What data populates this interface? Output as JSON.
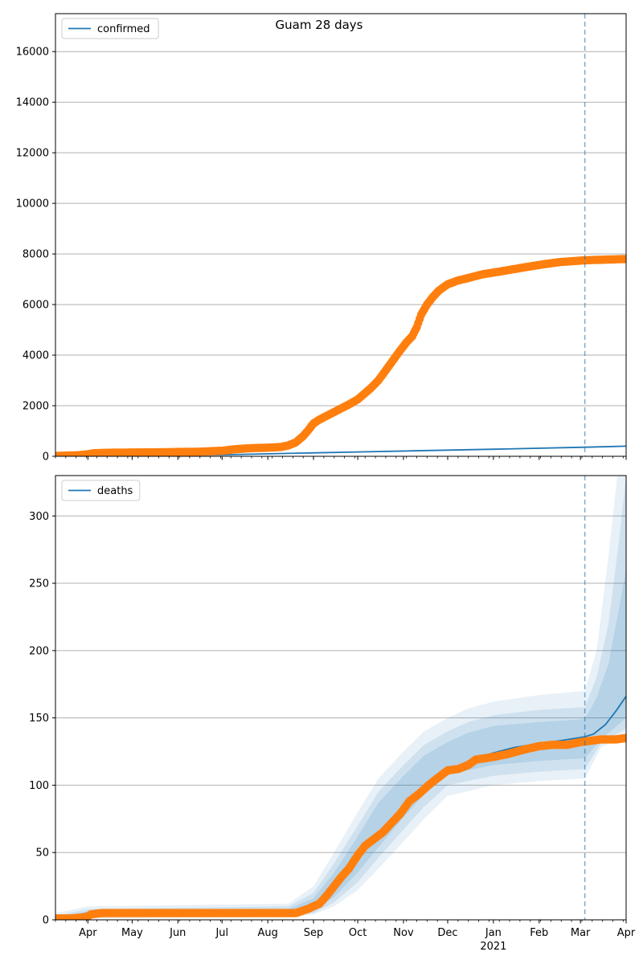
{
  "figure": {
    "title": "Guam 28 days"
  },
  "colors": {
    "model": "#1f77b4",
    "observed": "#ff7f0e",
    "grid": "#b0b0b0",
    "band": "#1f77b4",
    "forecast_line": "#1f77b4"
  },
  "x_axis": {
    "month_labels": [
      "Apr",
      "May",
      "Jun",
      "Jul",
      "Aug",
      "Sep",
      "Oct",
      "Nov",
      "Dec",
      "Jan",
      "Feb",
      "Mar",
      "Apr"
    ],
    "year_label": "2021",
    "range": [
      "2020-03-10",
      "2021-04-01"
    ],
    "forecast_start": "2021-03-04"
  },
  "chart_data": [
    {
      "type": "line",
      "name": "confirmed",
      "ylim": [
        0,
        17500
      ],
      "yticks": [
        0,
        2000,
        4000,
        6000,
        8000,
        10000,
        12000,
        14000,
        16000
      ],
      "grid": "horizontal",
      "legend": {
        "position": "top-left",
        "entries": [
          "confirmed"
        ]
      },
      "series": [
        {
          "name": "confirmed",
          "style": "line",
          "points": [
            [
              "2020-03-10",
              0
            ],
            [
              "2020-07-01",
              60
            ],
            [
              "2020-10-01",
              170
            ],
            [
              "2021-01-01",
              280
            ],
            [
              "2021-03-04",
              360
            ],
            [
              "2021-04-01",
              400
            ]
          ]
        },
        {
          "style": "markers",
          "points": [
            [
              "2020-03-10",
              15
            ],
            [
              "2020-03-25",
              40
            ],
            [
              "2020-04-01",
              80
            ],
            [
              "2020-04-05",
              120
            ],
            [
              "2020-04-15",
              140
            ],
            [
              "2020-05-01",
              150
            ],
            [
              "2020-05-15",
              155
            ],
            [
              "2020-06-01",
              170
            ],
            [
              "2020-06-15",
              180
            ],
            [
              "2020-07-01",
              220
            ],
            [
              "2020-07-10",
              280
            ],
            [
              "2020-07-20",
              320
            ],
            [
              "2020-08-01",
              340
            ],
            [
              "2020-08-10",
              370
            ],
            [
              "2020-08-15",
              430
            ],
            [
              "2020-08-20",
              550
            ],
            [
              "2020-08-25",
              800
            ],
            [
              "2020-08-28",
              1000
            ],
            [
              "2020-09-01",
              1300
            ],
            [
              "2020-09-05",
              1450
            ],
            [
              "2020-09-10",
              1600
            ],
            [
              "2020-09-15",
              1750
            ],
            [
              "2020-09-20",
              1900
            ],
            [
              "2020-09-25",
              2050
            ],
            [
              "2020-10-01",
              2250
            ],
            [
              "2020-10-05",
              2450
            ],
            [
              "2020-10-10",
              2700
            ],
            [
              "2020-10-15",
              3000
            ],
            [
              "2020-10-20",
              3400
            ],
            [
              "2020-10-25",
              3800
            ],
            [
              "2020-10-30",
              4200
            ],
            [
              "2020-11-03",
              4500
            ],
            [
              "2020-11-07",
              4750
            ],
            [
              "2020-11-10",
              5100
            ],
            [
              "2020-11-13",
              5600
            ],
            [
              "2020-11-17",
              6000
            ],
            [
              "2020-11-21",
              6300
            ],
            [
              "2020-11-25",
              6550
            ],
            [
              "2020-12-01",
              6800
            ],
            [
              "2020-12-08",
              6950
            ],
            [
              "2020-12-15",
              7050
            ],
            [
              "2020-12-25",
              7200
            ],
            [
              "2021-01-05",
              7300
            ],
            [
              "2021-01-15",
              7400
            ],
            [
              "2021-01-25",
              7500
            ],
            [
              "2021-02-05",
              7600
            ],
            [
              "2021-02-15",
              7680
            ],
            [
              "2021-02-25",
              7720
            ],
            [
              "2021-03-04",
              7750
            ],
            [
              "2021-03-15",
              7770
            ],
            [
              "2021-04-01",
              7800
            ]
          ]
        }
      ]
    },
    {
      "type": "line",
      "name": "deaths",
      "ylim": [
        0,
        330
      ],
      "yticks": [
        0,
        50,
        100,
        150,
        200,
        250,
        300
      ],
      "grid": "horizontal",
      "legend": {
        "position": "top-left",
        "entries": [
          "deaths"
        ]
      },
      "bands": [
        {
          "opacity": 0.1,
          "upper": [
            [
              "2020-03-10",
              5
            ],
            [
              "2020-04-01",
              10
            ],
            [
              "2020-08-15",
              12
            ],
            [
              "2020-09-01",
              25
            ],
            [
              "2020-09-15",
              50
            ],
            [
              "2020-10-01",
              80
            ],
            [
              "2020-10-15",
              105
            ],
            [
              "2020-11-01",
              125
            ],
            [
              "2020-11-15",
              140
            ],
            [
              "2020-12-01",
              150
            ],
            [
              "2020-12-15",
              157
            ],
            [
              "2021-01-01",
              162
            ],
            [
              "2021-02-01",
              167
            ],
            [
              "2021-03-04",
              170
            ],
            [
              "2021-03-12",
              200
            ],
            [
              "2021-03-20",
              270
            ],
            [
              "2021-03-26",
              330
            ],
            [
              "2021-04-01",
              330
            ]
          ],
          "lower": [
            [
              "2021-04-01",
              137
            ],
            [
              "2021-03-15",
              128
            ],
            [
              "2021-03-04",
              105
            ],
            [
              "2021-02-01",
              103
            ],
            [
              "2021-01-01",
              100
            ],
            [
              "2020-12-01",
              92
            ],
            [
              "2020-11-15",
              75
            ],
            [
              "2020-11-01",
              58
            ],
            [
              "2020-10-15",
              38
            ],
            [
              "2020-10-01",
              22
            ],
            [
              "2020-09-15",
              10
            ],
            [
              "2020-09-01",
              4
            ],
            [
              "2020-08-15",
              2
            ],
            [
              "2020-04-01",
              1
            ],
            [
              "2020-03-10",
              0
            ]
          ]
        },
        {
          "opacity": 0.12,
          "upper": [
            [
              "2020-03-10",
              3
            ],
            [
              "2020-04-01",
              8
            ],
            [
              "2020-08-15",
              10
            ],
            [
              "2020-09-01",
              20
            ],
            [
              "2020-09-15",
              42
            ],
            [
              "2020-10-01",
              70
            ],
            [
              "2020-10-15",
              95
            ],
            [
              "2020-11-01",
              115
            ],
            [
              "2020-11-15",
              130
            ],
            [
              "2020-12-01",
              140
            ],
            [
              "2020-12-15",
              147
            ],
            [
              "2021-01-01",
              152
            ],
            [
              "2021-02-01",
              156
            ],
            [
              "2021-03-04",
              158
            ],
            [
              "2021-03-12",
              180
            ],
            [
              "2021-03-20",
              220
            ],
            [
              "2021-03-27",
              280
            ],
            [
              "2021-04-01",
              330
            ]
          ],
          "lower": [
            [
              "2021-04-01",
              142
            ],
            [
              "2021-03-15",
              131
            ],
            [
              "2021-03-04",
              112
            ],
            [
              "2021-02-01",
              110
            ],
            [
              "2021-01-01",
              107
            ],
            [
              "2020-12-01",
              100
            ],
            [
              "2020-11-15",
              84
            ],
            [
              "2020-11-01",
              67
            ],
            [
              "2020-10-15",
              46
            ],
            [
              "2020-10-01",
              28
            ],
            [
              "2020-09-15",
              13
            ],
            [
              "2020-09-01",
              5
            ],
            [
              "2020-08-15",
              3
            ],
            [
              "2020-04-01",
              2
            ],
            [
              "2020-03-10",
              0
            ]
          ]
        },
        {
          "opacity": 0.14,
          "upper": [
            [
              "2020-03-10",
              2
            ],
            [
              "2020-04-01",
              6
            ],
            [
              "2020-08-15",
              8
            ],
            [
              "2020-09-01",
              16
            ],
            [
              "2020-09-15",
              35
            ],
            [
              "2020-10-01",
              62
            ],
            [
              "2020-10-15",
              87
            ],
            [
              "2020-11-01",
              107
            ],
            [
              "2020-11-15",
              122
            ],
            [
              "2020-12-01",
              132
            ],
            [
              "2020-12-15",
              139
            ],
            [
              "2021-01-01",
              144
            ],
            [
              "2021-02-01",
              147
            ],
            [
              "2021-03-04",
              149
            ],
            [
              "2021-03-12",
              165
            ],
            [
              "2021-03-20",
              190
            ],
            [
              "2021-03-27",
              230
            ],
            [
              "2021-04-01",
              260
            ]
          ],
          "lower": [
            [
              "2021-04-01",
              150
            ],
            [
              "2021-03-15",
              134
            ],
            [
              "2021-03-04",
              120
            ],
            [
              "2021-02-01",
              118
            ],
            [
              "2021-01-01",
              115
            ],
            [
              "2020-12-01",
              108
            ],
            [
              "2020-11-15",
              93
            ],
            [
              "2020-11-01",
              76
            ],
            [
              "2020-10-15",
              54
            ],
            [
              "2020-10-01",
              35
            ],
            [
              "2020-09-15",
              17
            ],
            [
              "2020-09-01",
              7
            ],
            [
              "2020-08-15",
              4
            ],
            [
              "2020-04-01",
              3
            ],
            [
              "2020-03-10",
              0
            ]
          ]
        }
      ],
      "series": [
        {
          "name": "deaths",
          "style": "line",
          "points": [
            [
              "2020-03-10",
              1
            ],
            [
              "2020-04-01",
              5
            ],
            [
              "2020-08-15",
              6
            ],
            [
              "2020-09-01",
              10
            ],
            [
              "2020-09-15",
              25
            ],
            [
              "2020-10-01",
              45
            ],
            [
              "2020-10-15",
              65
            ],
            [
              "2020-11-01",
              82
            ],
            [
              "2020-11-15",
              98
            ],
            [
              "2020-12-01",
              110
            ],
            [
              "2020-12-15",
              118
            ],
            [
              "2021-01-01",
              124
            ],
            [
              "2021-01-15",
              128
            ],
            [
              "2021-02-01",
              131
            ],
            [
              "2021-02-15",
              133
            ],
            [
              "2021-03-04",
              136
            ],
            [
              "2021-03-10",
              138
            ],
            [
              "2021-03-18",
              145
            ],
            [
              "2021-03-25",
              155
            ],
            [
              "2021-04-01",
              166
            ]
          ]
        },
        {
          "style": "markers",
          "points": [
            [
              "2020-03-10",
              1
            ],
            [
              "2020-03-20",
              1
            ],
            [
              "2020-03-31",
              2
            ],
            [
              "2020-04-03",
              4
            ],
            [
              "2020-04-10",
              5
            ],
            [
              "2020-05-01",
              5
            ],
            [
              "2020-06-01",
              5
            ],
            [
              "2020-07-01",
              5
            ],
            [
              "2020-08-01",
              5
            ],
            [
              "2020-08-20",
              5
            ],
            [
              "2020-08-28",
              8
            ],
            [
              "2020-09-05",
              12
            ],
            [
              "2020-09-10",
              18
            ],
            [
              "2020-09-15",
              25
            ],
            [
              "2020-09-20",
              32
            ],
            [
              "2020-09-25",
              38
            ],
            [
              "2020-10-01",
              48
            ],
            [
              "2020-10-06",
              55
            ],
            [
              "2020-10-12",
              60
            ],
            [
              "2020-10-18",
              65
            ],
            [
              "2020-10-24",
              72
            ],
            [
              "2020-10-30",
              79
            ],
            [
              "2020-11-05",
              88
            ],
            [
              "2020-11-12",
              94
            ],
            [
              "2020-11-18",
              100
            ],
            [
              "2020-11-25",
              106
            ],
            [
              "2020-12-01",
              111
            ],
            [
              "2020-12-08",
              112
            ],
            [
              "2020-12-15",
              115
            ],
            [
              "2020-12-20",
              119
            ],
            [
              "2021-01-01",
              121
            ],
            [
              "2021-01-10",
              123
            ],
            [
              "2021-01-20",
              126
            ],
            [
              "2021-02-01",
              129
            ],
            [
              "2021-02-10",
              130
            ],
            [
              "2021-02-20",
              130
            ],
            [
              "2021-03-01",
              132
            ],
            [
              "2021-03-08",
              133
            ],
            [
              "2021-03-15",
              134
            ],
            [
              "2021-03-25",
              134
            ],
            [
              "2021-04-01",
              135
            ]
          ]
        }
      ]
    }
  ]
}
